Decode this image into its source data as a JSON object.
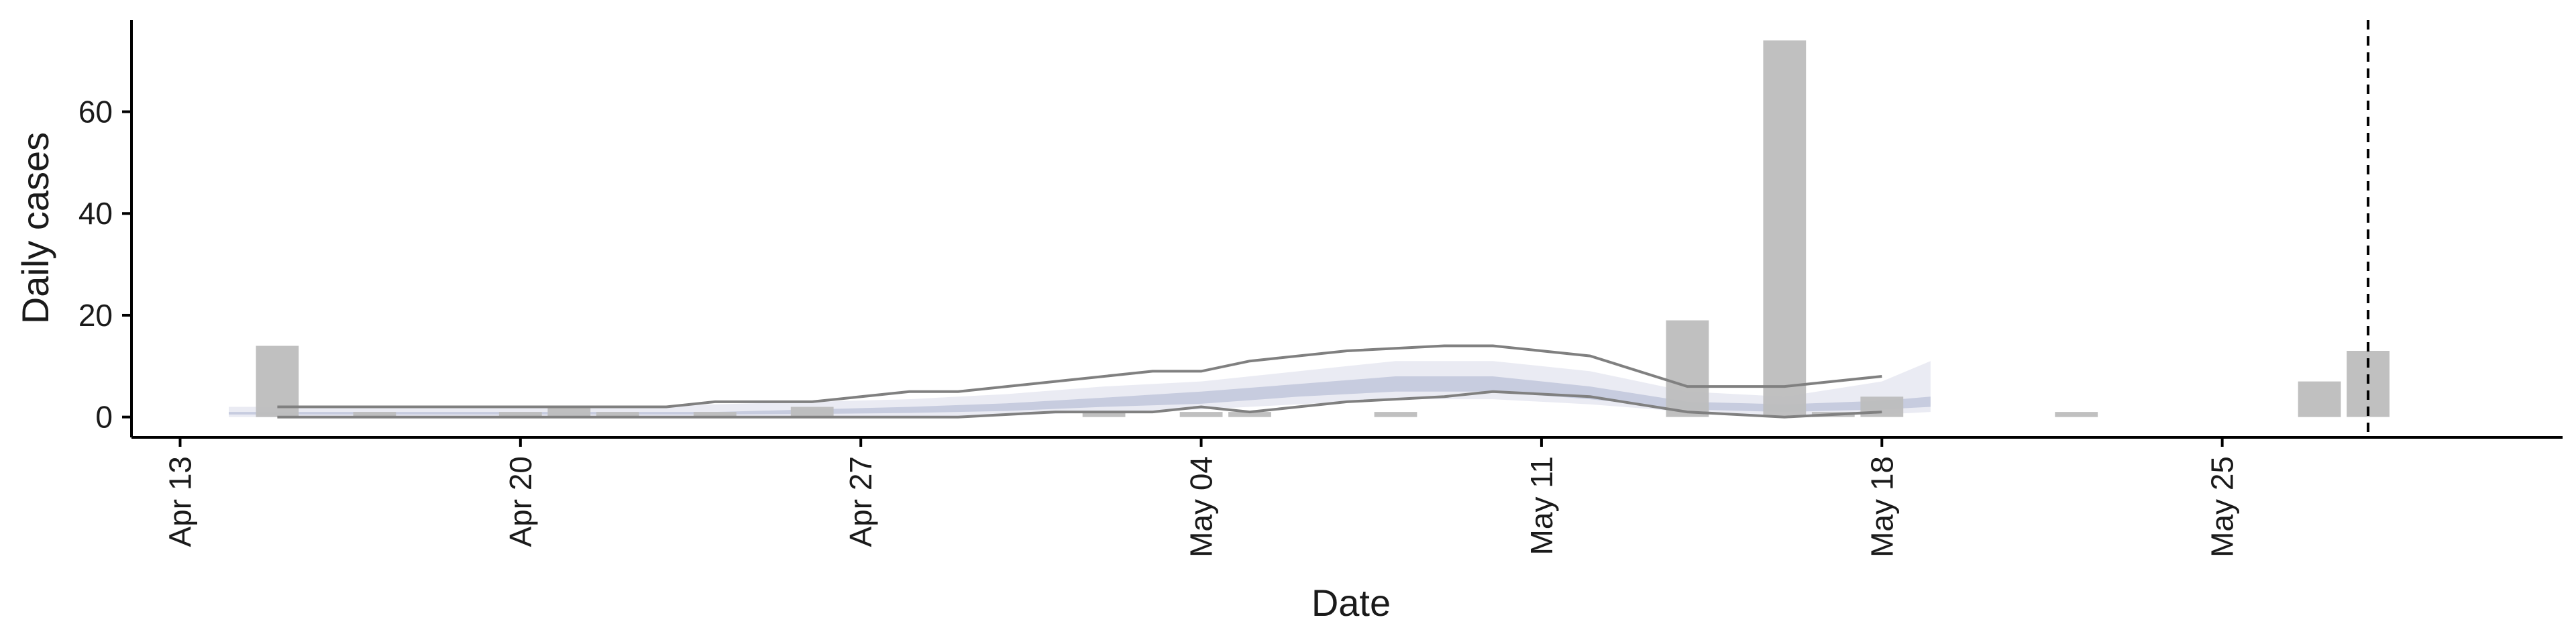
{
  "chart_data": {
    "type": "bar",
    "xlabel": "Date",
    "ylabel": "Daily cases",
    "x_range": [
      "2020-04-12",
      "2020-06-01"
    ],
    "y_range": [
      -4,
      78
    ],
    "y_ticks": [
      0,
      20,
      40,
      60
    ],
    "x_ticks": [
      {
        "date": "2020-04-13",
        "label": "Apr 13"
      },
      {
        "date": "2020-04-20",
        "label": "Apr 20"
      },
      {
        "date": "2020-04-27",
        "label": "Apr 27"
      },
      {
        "date": "2020-05-04",
        "label": "May 04"
      },
      {
        "date": "2020-05-11",
        "label": "May 11"
      },
      {
        "date": "2020-05-18",
        "label": "May 18"
      },
      {
        "date": "2020-05-25",
        "label": "May 25"
      }
    ],
    "bars": [
      {
        "date": "2020-04-15",
        "value": 14
      },
      {
        "date": "2020-04-17",
        "value": 1
      },
      {
        "date": "2020-04-20",
        "value": 1
      },
      {
        "date": "2020-04-21",
        "value": 2
      },
      {
        "date": "2020-04-22",
        "value": 1
      },
      {
        "date": "2020-04-24",
        "value": 1
      },
      {
        "date": "2020-04-26",
        "value": 2
      },
      {
        "date": "2020-05-02",
        "value": 1
      },
      {
        "date": "2020-05-04",
        "value": 1
      },
      {
        "date": "2020-05-05",
        "value": 1
      },
      {
        "date": "2020-05-08",
        "value": 1
      },
      {
        "date": "2020-05-14",
        "value": 19
      },
      {
        "date": "2020-05-16",
        "value": 74
      },
      {
        "date": "2020-05-17",
        "value": 1
      },
      {
        "date": "2020-05-18",
        "value": 4
      },
      {
        "date": "2020-05-22",
        "value": 1
      },
      {
        "date": "2020-05-27",
        "value": 7
      },
      {
        "date": "2020-05-28",
        "value": 13
      }
    ],
    "nowcast_band": {
      "dates": [
        "2020-04-14",
        "2020-04-16",
        "2020-04-18",
        "2020-04-20",
        "2020-04-22",
        "2020-04-24",
        "2020-04-26",
        "2020-04-28",
        "2020-04-30",
        "2020-05-02",
        "2020-05-04",
        "2020-05-06",
        "2020-05-08",
        "2020-05-10",
        "2020-05-12",
        "2020-05-14",
        "2020-05-16",
        "2020-05-18",
        "2020-05-19"
      ],
      "outer_upper": [
        2,
        2,
        2,
        2,
        2,
        2.5,
        3,
        3.5,
        4.5,
        6,
        7,
        9,
        11,
        11,
        9,
        5,
        4,
        7,
        11
      ],
      "outer_lower": [
        0,
        0,
        0,
        0,
        0,
        0,
        0,
        0,
        0.3,
        1,
        1.5,
        2.5,
        3.5,
        3.5,
        2.5,
        1,
        0.3,
        0.5,
        1
      ],
      "inner_upper": [
        1,
        1,
        1,
        1,
        1,
        1,
        1.5,
        2,
        2.7,
        3.8,
        5,
        6.5,
        8,
        8,
        6,
        3,
        2.5,
        3.2,
        4
      ],
      "inner_lower": [
        0.5,
        0.5,
        0.5,
        0.5,
        0.5,
        0.5,
        0.6,
        0.8,
        1.2,
        2,
        2.6,
        4,
        5,
        5,
        3.5,
        1.5,
        1,
        1.5,
        2
      ]
    },
    "ci_lines": {
      "dates": [
        "2020-04-15",
        "2020-04-17",
        "2020-04-19",
        "2020-04-21",
        "2020-04-23",
        "2020-04-24",
        "2020-04-26",
        "2020-04-28",
        "2020-04-29",
        "2020-05-01",
        "2020-05-03",
        "2020-05-04",
        "2020-05-05",
        "2020-05-07",
        "2020-05-09",
        "2020-05-10",
        "2020-05-12",
        "2020-05-14",
        "2020-05-16",
        "2020-05-18"
      ],
      "upper": [
        2,
        2,
        2,
        2,
        2,
        3,
        3,
        5,
        5,
        7,
        9,
        9,
        11,
        13,
        14,
        14,
        12,
        6,
        6,
        8
      ],
      "lower": [
        0,
        0,
        0,
        0,
        0,
        0,
        0,
        0,
        0,
        1,
        1,
        2,
        1,
        3,
        4,
        5,
        4,
        1,
        0,
        1
      ]
    },
    "reference_line": {
      "date": "2020-05-28",
      "style": "dashed"
    },
    "colors": {
      "bar": "#bdbdbd",
      "band_outer": "#e6e8f1",
      "band_inner": "#c3c9dd",
      "ci_line": "#808080",
      "axis": "#000000"
    }
  }
}
